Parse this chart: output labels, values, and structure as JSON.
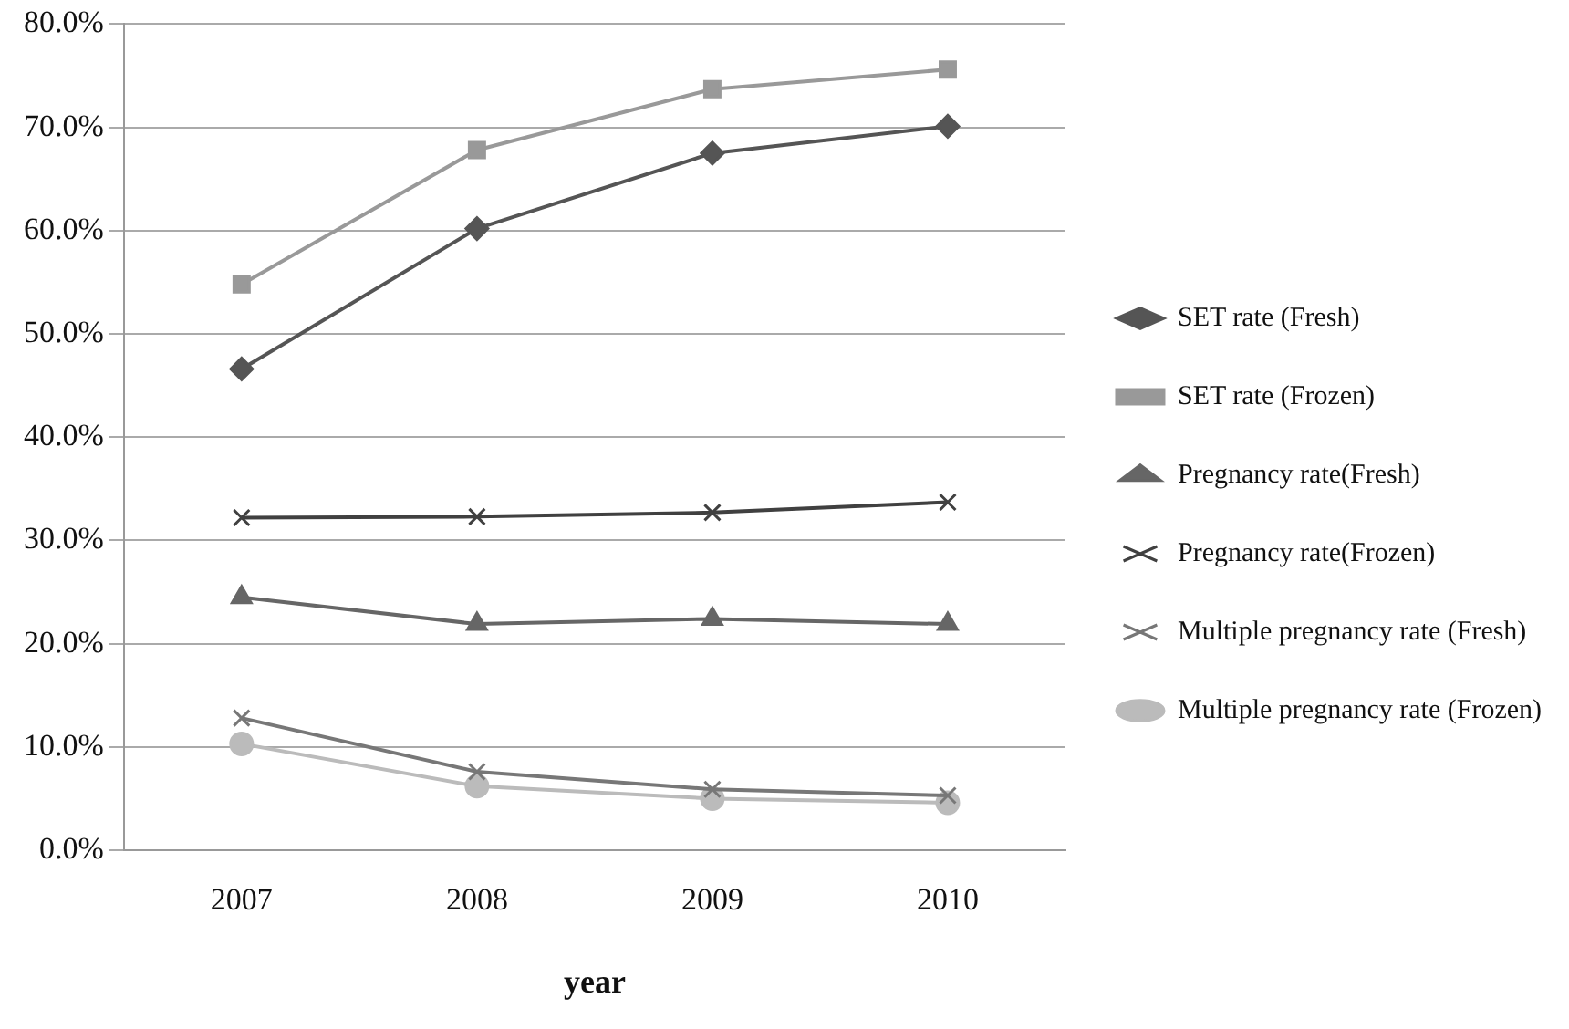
{
  "chart_data": {
    "type": "line",
    "xlabel": "year",
    "categories": [
      "2007",
      "2008",
      "2009",
      "2010"
    ],
    "ylim": [
      0,
      80
    ],
    "yticks": [
      {
        "value": 0,
        "label": "0.0%"
      },
      {
        "value": 10,
        "label": "10.0%"
      },
      {
        "value": 20,
        "label": "20.0%"
      },
      {
        "value": 30,
        "label": "30.0%"
      },
      {
        "value": 40,
        "label": "40.0%"
      },
      {
        "value": 50,
        "label": "50.0%"
      },
      {
        "value": 60,
        "label": "60.0%"
      },
      {
        "value": 70,
        "label": "70.0%"
      },
      {
        "value": 80,
        "label": "80.0%"
      }
    ],
    "grid": "y",
    "legend": "right",
    "line_style": "solid",
    "series": [
      {
        "name": "SET rate (Fresh)",
        "color": "#555555",
        "marker": "diamond",
        "values": [
          46.6,
          60.2,
          67.5,
          70.1
        ]
      },
      {
        "name": "SET rate (Frozen)",
        "color": "#999999",
        "marker": "square",
        "values": [
          54.8,
          67.8,
          73.7,
          75.6
        ]
      },
      {
        "name": "Pregnancy rate(Fresh)",
        "color": "#666666",
        "marker": "triangle",
        "values": [
          24.5,
          21.9,
          22.4,
          21.9
        ]
      },
      {
        "name": "Pregnancy rate(Frozen)",
        "color": "#404040",
        "marker": "cross",
        "values": [
          32.2,
          32.3,
          32.7,
          33.7
        ]
      },
      {
        "name": "Multiple pregnancy rate (Fresh)",
        "color": "#777777",
        "marker": "cross",
        "values": [
          12.8,
          7.6,
          5.9,
          5.3
        ]
      },
      {
        "name": "Multiple pregnancy rate (Frozen)",
        "color": "#bbbbbb",
        "marker": "circle",
        "values": [
          10.3,
          6.2,
          5.0,
          4.6
        ]
      }
    ]
  }
}
